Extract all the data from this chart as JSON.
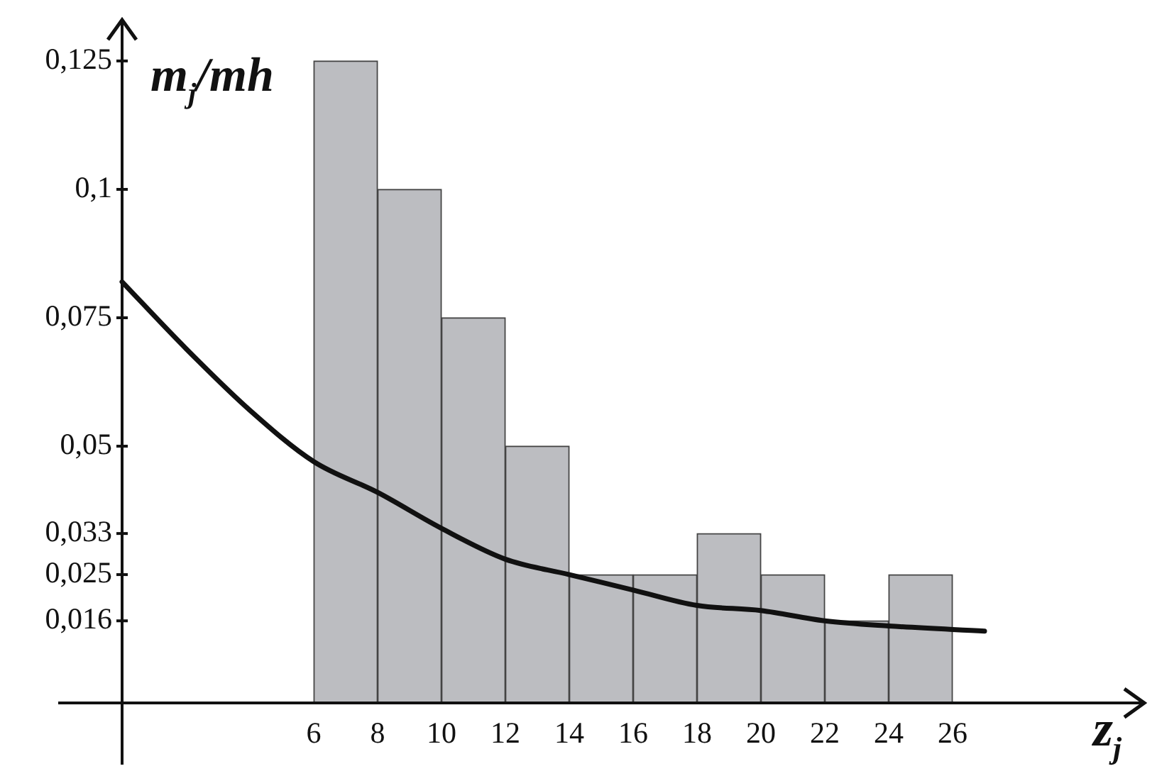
{
  "chart_data": {
    "type": "histogram",
    "xlabel": "z$_{j}$",
    "ylabel": "m$_{j}$/mh",
    "bins": [
      6,
      8,
      10,
      12,
      14,
      16,
      18,
      20,
      22,
      24,
      26
    ],
    "values": [
      0.125,
      0.1,
      0.075,
      0.05,
      0.025,
      0.025,
      0.033,
      0.025,
      0.016,
      0.025
    ],
    "color": "#bcbdc1",
    "series": [
      {
        "type": "line",
        "color": "#111111",
        "x": [
          0,
          2,
          4,
          6,
          8,
          10,
          12,
          14,
          16,
          18,
          20,
          22,
          24,
          27
        ],
        "values": [
          0.082,
          0.069,
          0.057,
          0.047,
          0.041,
          0.034,
          0.028,
          0.025,
          0.022,
          0.019,
          0.018,
          0.016,
          0.015,
          0.014
        ]
      }
    ],
    "xlim": [
      -2,
      32
    ],
    "ylim": [
      -0.012,
      0.133
    ],
    "xticks": [
      6,
      8,
      10,
      12,
      14,
      16,
      18,
      20,
      22,
      24,
      26
    ],
    "yticks": [
      {
        "value": 0.016,
        "label": "0,016"
      },
      {
        "value": 0.025,
        "label": "0,025"
      },
      {
        "value": 0.033,
        "label": "0,033"
      },
      {
        "value": 0.05,
        "label": "0,05"
      },
      {
        "value": 0.075,
        "label": "0,075"
      },
      {
        "value": 0.1,
        "label": "0,1"
      },
      {
        "value": 0.125,
        "label": "0,125"
      }
    ]
  }
}
